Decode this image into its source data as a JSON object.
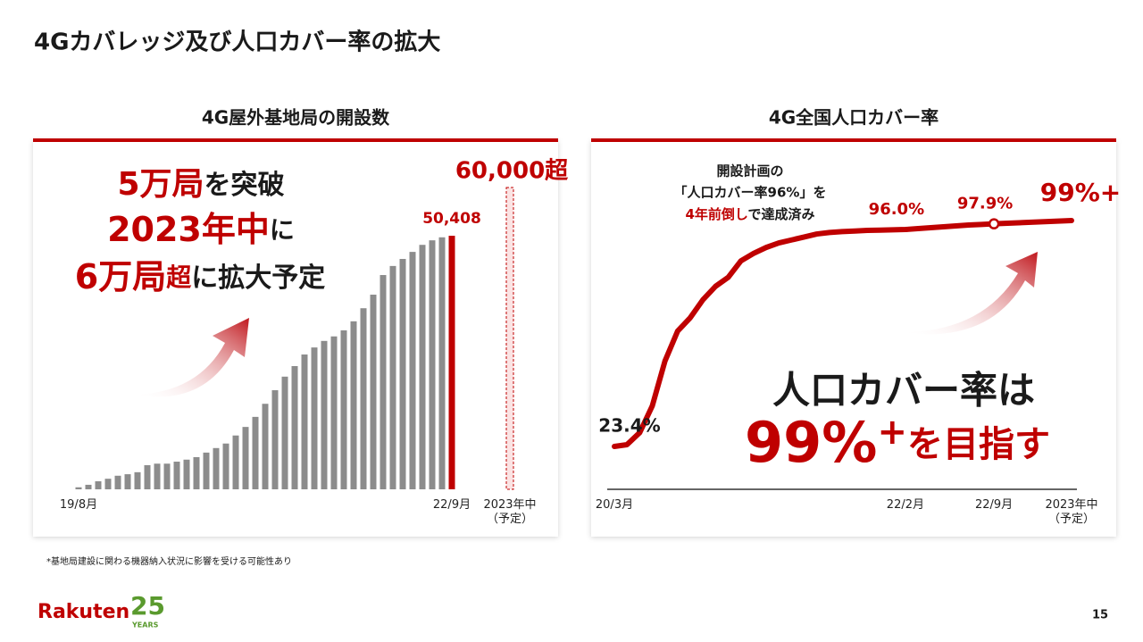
{
  "title": "4Gカバレッジ及び人口カバー率の拡大",
  "footnote": "*基地局建設に関わる機器納入状況に影響を受ける可能性あり",
  "page_number": "15",
  "logo": {
    "brand": "Rakuten",
    "years": "25",
    "years_label": "YEARS"
  },
  "chart_data": [
    {
      "type": "bar",
      "title": "4G屋外基地局の開設数",
      "categories": [
        "19/8月",
        null,
        null,
        null,
        null,
        null,
        null,
        null,
        null,
        null,
        null,
        null,
        null,
        null,
        null,
        null,
        null,
        null,
        null,
        null,
        null,
        null,
        null,
        null,
        null,
        null,
        null,
        null,
        null,
        null,
        null,
        null,
        null,
        null,
        null,
        null,
        null,
        null,
        "22/9月",
        "2023年中（予定）"
      ],
      "values": [
        400,
        900,
        1600,
        2100,
        2700,
        3000,
        3400,
        4800,
        5100,
        5100,
        5500,
        5900,
        6400,
        7300,
        8200,
        9100,
        10700,
        12400,
        14400,
        17000,
        19700,
        22400,
        24500,
        26800,
        28200,
        29500,
        30400,
        31600,
        33400,
        36000,
        38700,
        42600,
        44400,
        45800,
        47200,
        48600,
        49500,
        50100,
        50408,
        60000
      ],
      "value_labels": [
        null,
        null,
        null,
        null,
        null,
        null,
        null,
        null,
        null,
        null,
        null,
        null,
        null,
        null,
        null,
        null,
        null,
        null,
        null,
        null,
        null,
        null,
        null,
        null,
        null,
        null,
        null,
        null,
        null,
        null,
        null,
        null,
        null,
        null,
        null,
        null,
        null,
        null,
        "50,408",
        "60,000超"
      ],
      "colors": [
        "#8c8c8c",
        "#8c8c8c",
        "#8c8c8c",
        "#8c8c8c",
        "#8c8c8c",
        "#8c8c8c",
        "#8c8c8c",
        "#8c8c8c",
        "#8c8c8c",
        "#8c8c8c",
        "#8c8c8c",
        "#8c8c8c",
        "#8c8c8c",
        "#8c8c8c",
        "#8c8c8c",
        "#8c8c8c",
        "#8c8c8c",
        "#8c8c8c",
        "#8c8c8c",
        "#8c8c8c",
        "#8c8c8c",
        "#8c8c8c",
        "#8c8c8c",
        "#8c8c8c",
        "#8c8c8c",
        "#8c8c8c",
        "#8c8c8c",
        "#8c8c8c",
        "#8c8c8c",
        "#8c8c8c",
        "#8c8c8c",
        "#8c8c8c",
        "#8c8c8c",
        "#8c8c8c",
        "#8c8c8c",
        "#8c8c8c",
        "#8c8c8c",
        "#8c8c8c",
        "#bf0000",
        "#bf0000"
      ],
      "styles": [
        "solid",
        "solid",
        "solid",
        "solid",
        "solid",
        "solid",
        "solid",
        "solid",
        "solid",
        "solid",
        "solid",
        "solid",
        "solid",
        "solid",
        "solid",
        "solid",
        "solid",
        "solid",
        "solid",
        "solid",
        "solid",
        "solid",
        "solid",
        "solid",
        "solid",
        "solid",
        "solid",
        "solid",
        "solid",
        "solid",
        "solid",
        "solid",
        "solid",
        "solid",
        "solid",
        "solid",
        "solid",
        "solid",
        "solid",
        "dashed"
      ],
      "callout": [
        [
          "5万局",
          "を突破"
        ],
        [
          "2023年中",
          "に"
        ],
        [
          "6万局",
          "超",
          "に拡大予定"
        ]
      ]
    },
    {
      "type": "line",
      "title": "4G全国人口カバー率",
      "categories": [
        "20/3月",
        null,
        null,
        null,
        null,
        null,
        null,
        null,
        null,
        null,
        null,
        null,
        null,
        null,
        null,
        null,
        null,
        null,
        null,
        null,
        null,
        null,
        null,
        "22/2月",
        null,
        null,
        null,
        null,
        null,
        null,
        "22/9月",
        "2023年中（予定）"
      ],
      "values": [
        23.4,
        24,
        28,
        37,
        52,
        62,
        66.5,
        72.5,
        77,
        80,
        85.5,
        88,
        90,
        91.5,
        92.5,
        93.5,
        94.5,
        95,
        95.3,
        95.5,
        95.7,
        95.8,
        95.9,
        96.0,
        96.3,
        96.6,
        96.9,
        97.2,
        97.5,
        97.7,
        97.9,
        99
      ],
      "value_labels": [
        "23.4%",
        null,
        null,
        null,
        null,
        null,
        null,
        null,
        null,
        null,
        null,
        null,
        null,
        null,
        null,
        null,
        null,
        null,
        null,
        null,
        null,
        null,
        null,
        "96.0%",
        null,
        null,
        null,
        null,
        null,
        null,
        "97.9%",
        "99%+"
      ],
      "color": "#bf0000",
      "marker_points": [
        30
      ],
      "note": [
        "開設計画の",
        "「人口カバー率96%」を",
        "4年前倒し",
        "で達成済み"
      ],
      "callout": [
        "人口カバー率は",
        "99%",
        "+",
        "を目指す"
      ]
    }
  ]
}
